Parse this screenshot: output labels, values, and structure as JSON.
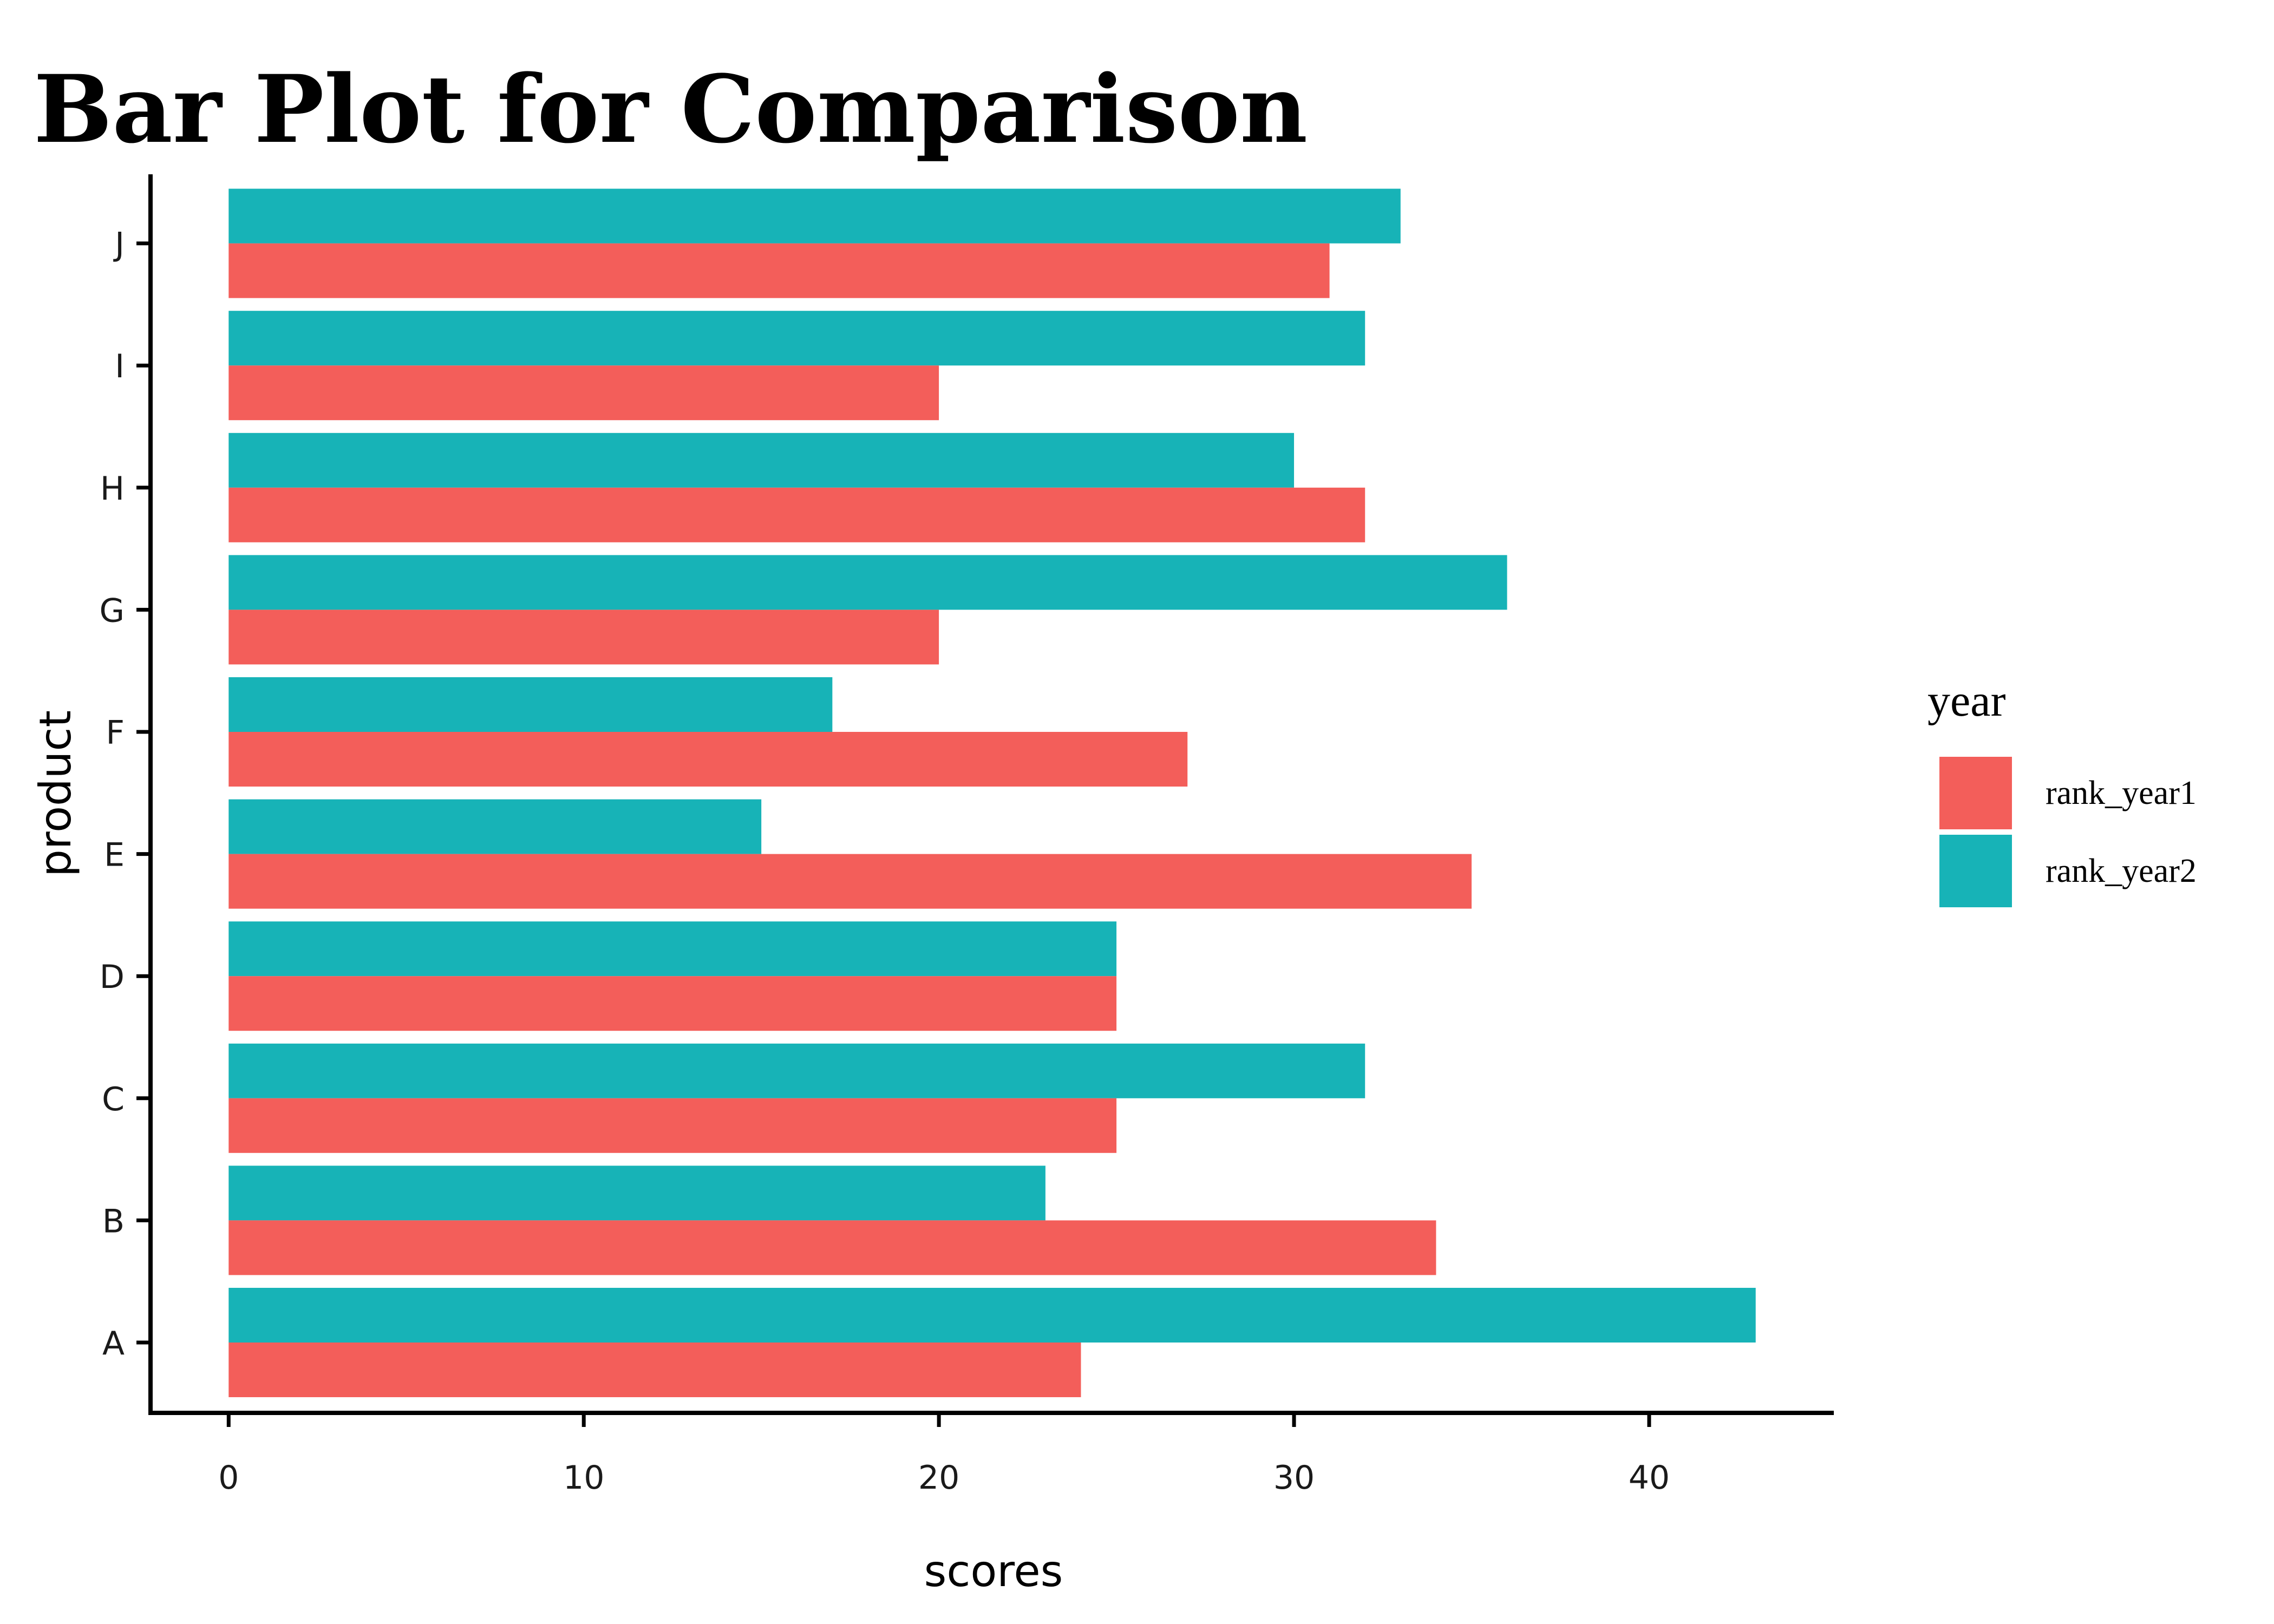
{
  "chart_data": {
    "type": "bar",
    "orientation": "horizontal",
    "title": "Bar Plot for Comparison",
    "xlabel": "scores",
    "ylabel": "product",
    "categories": [
      "A",
      "B",
      "C",
      "D",
      "E",
      "F",
      "G",
      "H",
      "I",
      "J"
    ],
    "series": [
      {
        "name": "rank_year1",
        "color": "#F35E5A",
        "values": [
          24,
          34,
          25,
          25,
          35,
          27,
          20,
          32,
          20,
          31
        ]
      },
      {
        "name": "rank_year2",
        "color": "#17B3B7",
        "values": [
          43,
          23,
          32,
          25,
          15,
          17,
          36,
          30,
          32,
          33
        ]
      }
    ],
    "xlim": [
      -2.2,
      45.2
    ],
    "xticks": [
      0,
      10,
      20,
      30,
      40
    ],
    "grid": false,
    "legend": {
      "title": "year",
      "placement": "right"
    }
  }
}
